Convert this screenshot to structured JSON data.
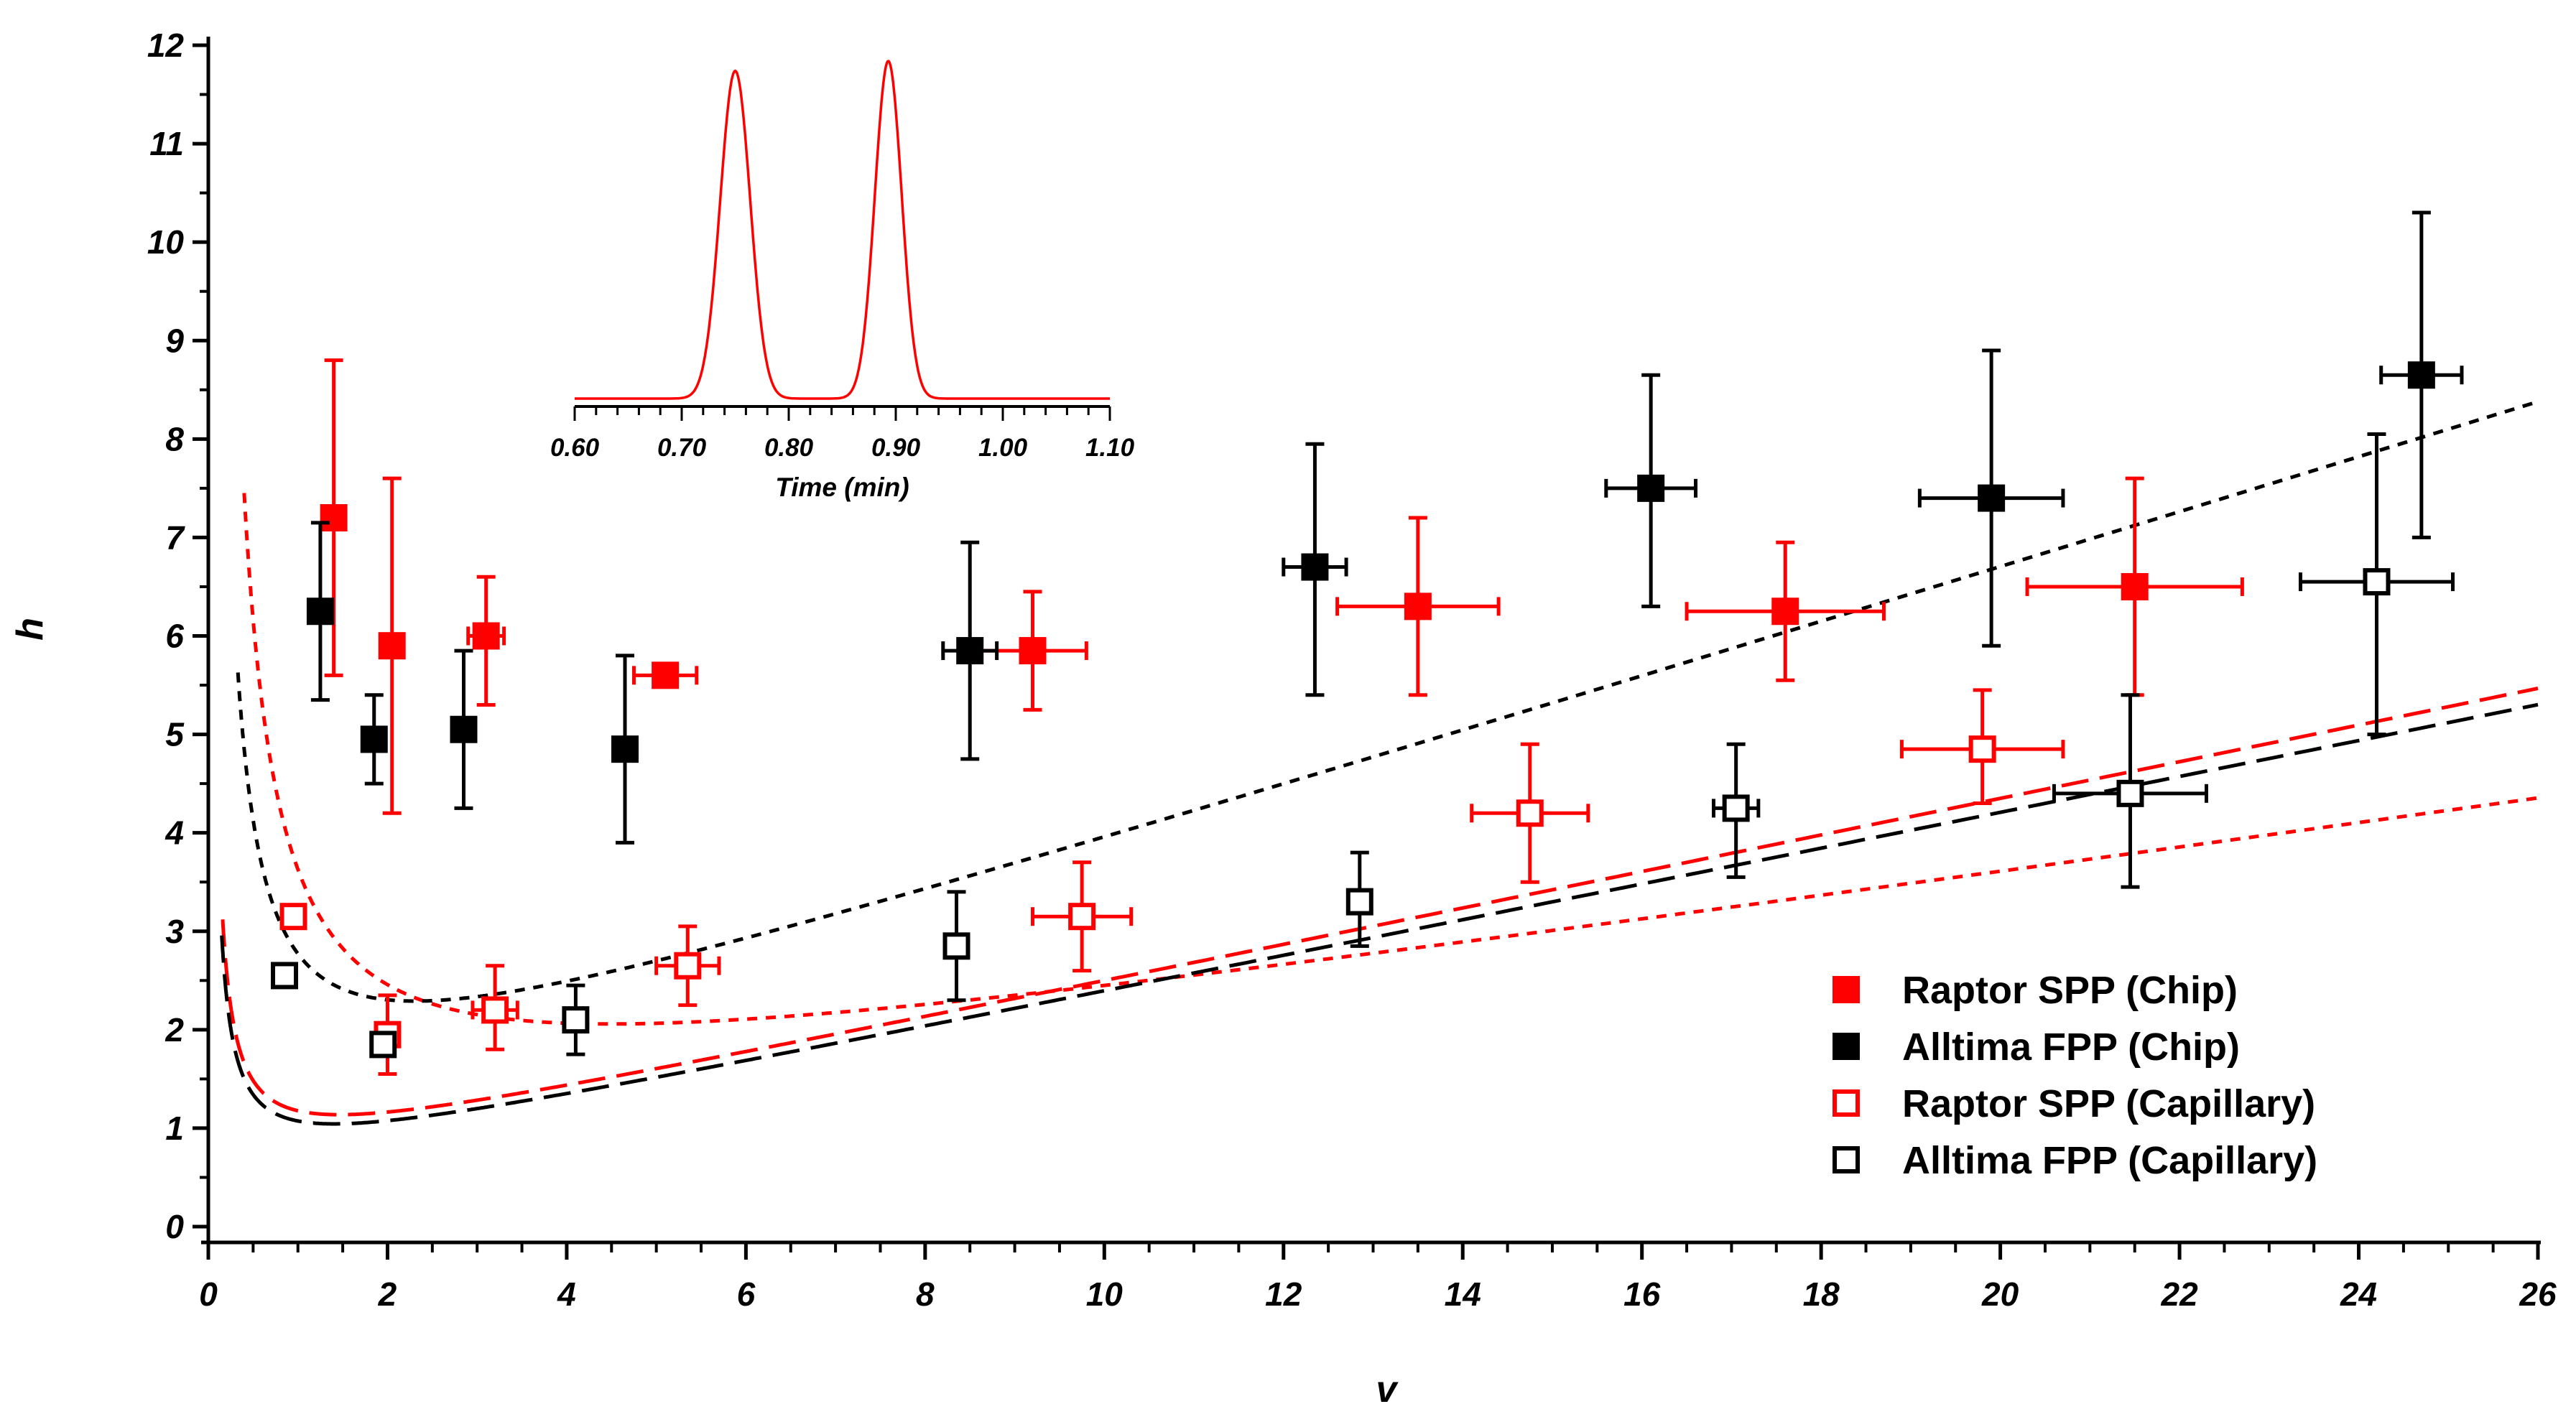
{
  "chart_data": {
    "type": "scatter",
    "xlabel": "v",
    "ylabel": "h",
    "xlim": [
      0,
      26
    ],
    "ylim": [
      0,
      12
    ],
    "xticks": [
      0,
      2,
      4,
      6,
      8,
      10,
      12,
      14,
      16,
      18,
      20,
      22,
      24,
      26
    ],
    "yticks": [
      0,
      1,
      2,
      3,
      4,
      5,
      6,
      7,
      8,
      9,
      10,
      11,
      12
    ],
    "grid": false,
    "legend_position": "bottom-right",
    "series": [
      {
        "name": "Raptor SPP (Chip)",
        "marker": "filled-square",
        "color": "#ff0000",
        "points": [
          {
            "x": 1.4,
            "y": 7.2,
            "ylo": 5.6,
            "yhi": 8.8,
            "xerr": 0
          },
          {
            "x": 2.05,
            "y": 5.9,
            "ylo": 4.2,
            "yhi": 7.6,
            "xerr": 0
          },
          {
            "x": 3.1,
            "y": 6.0,
            "ylo": 5.3,
            "yhi": 6.6,
            "xerr": 0.2
          },
          {
            "x": 5.1,
            "y": 5.6,
            "ylo": 5.5,
            "yhi": 5.7,
            "xerr": 0.35
          },
          {
            "x": 9.2,
            "y": 5.85,
            "ylo": 5.25,
            "yhi": 6.45,
            "xerr": 0.6
          },
          {
            "x": 13.5,
            "y": 6.3,
            "ylo": 5.4,
            "yhi": 7.2,
            "xerr": 0.9
          },
          {
            "x": 17.6,
            "y": 6.25,
            "ylo": 5.55,
            "yhi": 6.95,
            "xerr": 1.1
          },
          {
            "x": 21.5,
            "y": 6.5,
            "ylo": 5.4,
            "yhi": 7.6,
            "xerr": 1.2
          }
        ]
      },
      {
        "name": "Alltima FPP (Chip)",
        "marker": "filled-square",
        "color": "#000000",
        "points": [
          {
            "x": 1.25,
            "y": 6.25,
            "ylo": 5.35,
            "yhi": 7.15,
            "xerr": 0
          },
          {
            "x": 1.85,
            "y": 4.95,
            "ylo": 4.5,
            "yhi": 5.4,
            "xerr": 0
          },
          {
            "x": 2.85,
            "y": 5.05,
            "ylo": 4.25,
            "yhi": 5.85,
            "xerr": 0
          },
          {
            "x": 4.65,
            "y": 4.85,
            "ylo": 3.9,
            "yhi": 5.8,
            "xerr": 0
          },
          {
            "x": 8.5,
            "y": 5.85,
            "ylo": 4.75,
            "yhi": 6.95,
            "xerr": 0.3
          },
          {
            "x": 12.35,
            "y": 6.7,
            "ylo": 5.4,
            "yhi": 7.95,
            "xerr": 0.35
          },
          {
            "x": 16.1,
            "y": 7.5,
            "ylo": 6.3,
            "yhi": 8.65,
            "xerr": 0.5
          },
          {
            "x": 19.9,
            "y": 7.4,
            "ylo": 5.9,
            "yhi": 8.9,
            "xerr": 0.8
          },
          {
            "x": 24.7,
            "y": 8.65,
            "ylo": 7.0,
            "yhi": 10.3,
            "xerr": 0.45
          }
        ]
      },
      {
        "name": "Raptor SPP (Capillary)",
        "marker": "open-square",
        "color": "#ff0000",
        "points": [
          {
            "x": 0.95,
            "y": 3.15,
            "ylo": 3.1,
            "yhi": 3.2,
            "xerr": 0
          },
          {
            "x": 2.0,
            "y": 1.95,
            "ylo": 1.55,
            "yhi": 2.35,
            "xerr": 0
          },
          {
            "x": 3.2,
            "y": 2.2,
            "ylo": 1.8,
            "yhi": 2.65,
            "xerr": 0.25
          },
          {
            "x": 5.35,
            "y": 2.65,
            "ylo": 2.25,
            "yhi": 3.05,
            "xerr": 0.35
          },
          {
            "x": 9.75,
            "y": 3.15,
            "ylo": 2.6,
            "yhi": 3.7,
            "xerr": 0.55
          },
          {
            "x": 14.75,
            "y": 4.2,
            "ylo": 3.5,
            "yhi": 4.9,
            "xerr": 0.65
          },
          {
            "x": 19.8,
            "y": 4.85,
            "ylo": 4.3,
            "yhi": 5.45,
            "xerr": 0.9
          }
        ]
      },
      {
        "name": "Alltima FPP (Capillary)",
        "marker": "open-square",
        "color": "#000000",
        "points": [
          {
            "x": 0.85,
            "y": 2.55,
            "ylo": 2.5,
            "yhi": 2.6,
            "xerr": 0
          },
          {
            "x": 1.95,
            "y": 1.85,
            "ylo": 1.8,
            "yhi": 1.9,
            "xerr": 0
          },
          {
            "x": 4.1,
            "y": 2.1,
            "ylo": 1.75,
            "yhi": 2.45,
            "xerr": 0
          },
          {
            "x": 8.35,
            "y": 2.85,
            "ylo": 2.3,
            "yhi": 3.4,
            "xerr": 0
          },
          {
            "x": 12.85,
            "y": 3.3,
            "ylo": 2.85,
            "yhi": 3.8,
            "xerr": 0
          },
          {
            "x": 17.05,
            "y": 4.25,
            "ylo": 3.55,
            "yhi": 4.9,
            "xerr": 0.25
          },
          {
            "x": 21.45,
            "y": 4.4,
            "ylo": 3.45,
            "yhi": 5.4,
            "xerr": 0.85
          },
          {
            "x": 24.2,
            "y": 6.55,
            "ylo": 5.0,
            "yhi": 8.05,
            "xerr": 0.85
          }
        ]
      }
    ],
    "fit_curves": [
      {
        "series": "Raptor SPP (Chip)",
        "style": "short-dash",
        "color": "#ff0000",
        "A": 0.9,
        "B": 2.6,
        "C": 0.129,
        "xmin": 0.4,
        "xmax": 26
      },
      {
        "series": "Alltima FPP (Chip)",
        "style": "short-dash",
        "color": "#000000",
        "A": 0.99,
        "B": 1.5,
        "C": 0.282,
        "xmin": 0.33,
        "xmax": 26
      },
      {
        "series": "Raptor SPP (Capillary)",
        "style": "long-dash",
        "color": "#ff0000",
        "A": 0.59,
        "B": 0.4,
        "C": 0.187,
        "xmin": 0.16,
        "xmax": 26
      },
      {
        "series": "Alltima FPP (Capillary)",
        "style": "long-dash",
        "color": "#000000",
        "A": 0.53,
        "B": 0.36,
        "C": 0.183,
        "xmin": 0.15,
        "xmax": 26
      }
    ],
    "inset": {
      "type": "line",
      "xlabel": "Time (min)",
      "xlim": [
        0.6,
        1.1
      ],
      "xticks": [
        "0.60",
        "0.70",
        "0.80",
        "0.90",
        "1.00",
        "1.10"
      ],
      "color": "#ff0000",
      "peaks": [
        {
          "center": 0.75,
          "height": 1.0,
          "sigma": 0.014
        },
        {
          "center": 0.893,
          "height": 1.03,
          "sigma": 0.0125
        }
      ]
    }
  }
}
